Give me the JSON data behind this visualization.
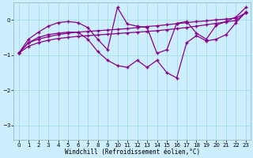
{
  "xlabel": "Windchill (Refroidissement éolien,°C)",
  "background_color": "#cceeff",
  "line_color": "#880088",
  "xlim": [
    -0.5,
    23.5
  ],
  "ylim": [
    -3.4,
    0.5
  ],
  "yticks": [
    0,
    -1,
    -2,
    -3
  ],
  "xticks": [
    0,
    1,
    2,
    3,
    4,
    5,
    6,
    7,
    8,
    9,
    10,
    11,
    12,
    13,
    14,
    15,
    16,
    17,
    18,
    19,
    20,
    21,
    22,
    23
  ],
  "series1_x": [
    0,
    1,
    2,
    3,
    4,
    5,
    6,
    7,
    8,
    9,
    10,
    11,
    12,
    13,
    14,
    15,
    16,
    17,
    18,
    19,
    20,
    21,
    22,
    23
  ],
  "series1_y": [
    -0.95,
    -0.65,
    -0.55,
    -0.48,
    -0.42,
    -0.38,
    -0.35,
    -0.33,
    -0.31,
    -0.29,
    -0.27,
    -0.25,
    -0.22,
    -0.19,
    -0.17,
    -0.14,
    -0.11,
    -0.08,
    -0.05,
    -0.03,
    0.0,
    0.02,
    0.05,
    0.2
  ],
  "series2_x": [
    0,
    1,
    2,
    3,
    4,
    5,
    6,
    7,
    8,
    9,
    10,
    11,
    12,
    13,
    14,
    15,
    16,
    17,
    18,
    19,
    20,
    21,
    22,
    23
  ],
  "series2_y": [
    -0.95,
    -0.75,
    -0.65,
    -0.58,
    -0.53,
    -0.5,
    -0.47,
    -0.45,
    -0.43,
    -0.41,
    -0.39,
    -0.37,
    -0.35,
    -0.33,
    -0.31,
    -0.28,
    -0.25,
    -0.22,
    -0.18,
    -0.14,
    -0.1,
    -0.06,
    -0.02,
    0.2
  ],
  "series3_x": [
    0,
    1,
    2,
    3,
    4,
    5,
    6,
    7,
    8,
    9,
    10,
    11,
    12,
    13,
    14,
    15,
    16,
    17,
    18,
    19,
    20,
    21,
    22,
    23
  ],
  "series3_y": [
    -0.95,
    -0.65,
    -0.5,
    -0.42,
    -0.38,
    -0.35,
    -0.35,
    -0.55,
    -0.9,
    -1.15,
    -1.3,
    -1.35,
    -1.15,
    -1.35,
    -1.15,
    -1.5,
    -1.65,
    -0.65,
    -0.45,
    -0.6,
    -0.55,
    -0.42,
    -0.08,
    0.22
  ],
  "series4_x": [
    0,
    1,
    2,
    3,
    4,
    5,
    6,
    7,
    8,
    9,
    10,
    11,
    12,
    13,
    14,
    15,
    16,
    17,
    18,
    19,
    20,
    21,
    22,
    23
  ],
  "series4_y": [
    -0.95,
    -0.55,
    -0.35,
    -0.18,
    -0.08,
    -0.05,
    -0.08,
    -0.22,
    -0.55,
    -0.85,
    0.35,
    -0.12,
    -0.18,
    -0.22,
    -0.95,
    -0.85,
    -0.1,
    -0.05,
    -0.38,
    -0.55,
    -0.15,
    -0.05,
    0.08,
    0.35
  ]
}
